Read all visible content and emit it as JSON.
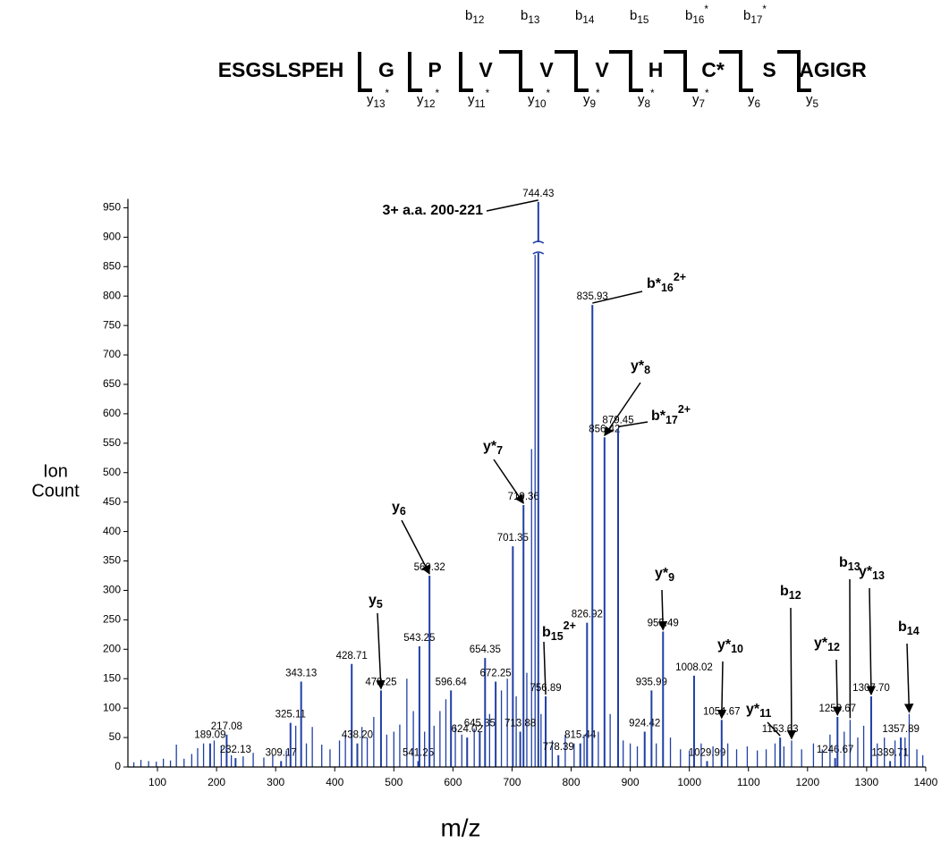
{
  "sequence": {
    "residues": [
      "ESGSLSPEH",
      "G",
      "P",
      "V",
      "V",
      "V",
      "H",
      "C*",
      "S",
      "AGIGR"
    ],
    "b_ions": [
      {
        "letter": "b",
        "sub": "12"
      },
      {
        "letter": "b",
        "sub": "13"
      },
      {
        "letter": "b",
        "sub": "14"
      },
      {
        "letter": "b",
        "sub": "15"
      },
      {
        "letter": "b",
        "sub": "16",
        "sup": "*"
      },
      {
        "letter": "b",
        "sub": "17",
        "sup": "*"
      }
    ],
    "y_ions": [
      {
        "letter": "y",
        "sub": "13",
        "sup": "*"
      },
      {
        "letter": "y",
        "sub": "12",
        "sup": "*"
      },
      {
        "letter": "y",
        "sub": "11",
        "sup": "*"
      },
      {
        "letter": "y",
        "sub": "10",
        "sup": "*"
      },
      {
        "letter": "y",
        "sub": "9",
        "sup": "*"
      },
      {
        "letter": "y",
        "sub": "8",
        "sup": "*"
      },
      {
        "letter": "y",
        "sub": "7",
        "sup": "*"
      },
      {
        "letter": "y",
        "sub": "6"
      },
      {
        "letter": "y",
        "sub": "5"
      }
    ]
  },
  "chart_data": {
    "type": "stem",
    "ylabel": [
      "Ion",
      "Count"
    ],
    "xlabel": "m/z",
    "color": "#1f3fa6",
    "xlim": [
      50,
      1400
    ],
    "ylim": [
      0,
      965
    ],
    "xticks": [
      100,
      200,
      300,
      400,
      500,
      600,
      700,
      800,
      900,
      1000,
      1100,
      1200,
      1300,
      1400
    ],
    "yticks": [
      0,
      50,
      100,
      150,
      200,
      250,
      300,
      350,
      400,
      450,
      500,
      550,
      600,
      650,
      700,
      750,
      800,
      850,
      900,
      950
    ],
    "x": [
      189.09,
      217.08,
      232.13,
      309.17,
      325.11,
      343.13,
      428.71,
      438.2,
      478.25,
      541.25,
      543.25,
      560.32,
      596.64,
      624.02,
      645.35,
      654.35,
      672.25,
      701.35,
      713.88,
      719.36,
      744.43,
      756.89,
      778.39,
      815.44,
      826.92,
      835.93,
      856.42,
      879.45,
      924.42,
      935.99,
      955.49,
      1008.02,
      1029.99,
      1054.67,
      1153.63,
      1246.67,
      1250.67,
      1307.7,
      1339.71,
      1357.89
    ],
    "x_labels": [
      "189.09",
      "217.08",
      "232.13",
      "309.17",
      "325.11",
      "343.13",
      "428.71",
      "438.20",
      "478.25",
      "541.25",
      "543.25",
      "560.32",
      "596.64",
      "624.02",
      "645.35",
      "654.35",
      "672.25",
      "701.35",
      "713.88",
      "719.36",
      "744.43",
      "756.89",
      "778.39",
      "815.44",
      "826.92",
      "835.93",
      "856.42",
      "879.45",
      "924.42",
      "935.99",
      "955.49",
      "1008.02",
      "1029.99",
      "1054.67",
      "1153.63",
      "1246.67",
      "1250.67",
      "1307.70",
      "1339.71",
      "1357.89"
    ],
    "values": [
      40,
      55,
      15,
      10,
      75,
      145,
      175,
      40,
      130,
      10,
      205,
      325,
      130,
      50,
      60,
      185,
      145,
      375,
      60,
      445,
      960,
      120,
      20,
      40,
      245,
      785,
      560,
      575,
      60,
      130,
      230,
      155,
      10,
      80,
      50,
      15,
      85,
      120,
      10,
      50
    ],
    "minor_x": [
      60,
      72,
      85,
      98,
      110,
      122,
      132,
      145,
      158,
      168,
      178,
      196,
      208,
      225,
      245,
      262,
      280,
      295,
      318,
      334,
      352,
      362,
      378,
      392,
      408,
      418,
      446,
      455,
      466,
      488,
      500,
      510,
      522,
      533,
      552,
      568,
      578,
      588,
      604,
      615,
      636,
      662,
      682,
      692,
      707,
      725,
      733,
      739,
      749,
      768,
      790,
      805,
      822,
      846,
      866,
      888,
      900,
      912,
      944,
      968,
      985,
      1000,
      1020,
      1040,
      1065,
      1080,
      1098,
      1115,
      1130,
      1145,
      1160,
      1173,
      1190,
      1210,
      1225,
      1238,
      1262,
      1272,
      1285,
      1295,
      1318,
      1330,
      1348,
      1365,
      1372,
      1385,
      1395
    ],
    "minor_values": [
      8,
      12,
      10,
      9,
      14,
      11,
      38,
      14,
      22,
      32,
      40,
      45,
      36,
      20,
      18,
      24,
      16,
      20,
      28,
      70,
      40,
      68,
      38,
      30,
      45,
      55,
      68,
      50,
      85,
      55,
      60,
      72,
      150,
      95,
      60,
      70,
      95,
      115,
      70,
      55,
      65,
      90,
      130,
      150,
      120,
      160,
      540,
      870,
      90,
      45,
      55,
      40,
      55,
      60,
      90,
      45,
      40,
      35,
      40,
      50,
      30,
      28,
      40,
      35,
      40,
      30,
      35,
      28,
      30,
      40,
      35,
      45,
      30,
      40,
      30,
      55,
      60,
      80,
      50,
      70,
      40,
      50,
      45,
      50,
      90,
      30,
      20
    ],
    "annotations": [
      {
        "text": "3+ a.a. 200-221"
      },
      {
        "letter": "b*",
        "sub": "16",
        "sup": "2+"
      },
      {
        "letter": "y*",
        "sub": "8"
      },
      {
        "letter": "b*",
        "sub": "17",
        "sup": "2+"
      },
      {
        "letter": "y*",
        "sub": "7"
      },
      {
        "letter": "y",
        "sub": "6"
      },
      {
        "letter": "y",
        "sub": "5"
      },
      {
        "letter": "b",
        "sub": "15",
        "sup": "2+"
      },
      {
        "letter": "y*",
        "sub": "9"
      },
      {
        "letter": "y*",
        "sub": "10"
      },
      {
        "letter": "y*",
        "sub": "11"
      },
      {
        "letter": "b",
        "sub": "12"
      },
      {
        "letter": "b",
        "sub": "13"
      },
      {
        "letter": "y*",
        "sub": "12"
      },
      {
        "letter": "y*",
        "sub": "13"
      },
      {
        "letter": "b",
        "sub": "14"
      }
    ]
  }
}
